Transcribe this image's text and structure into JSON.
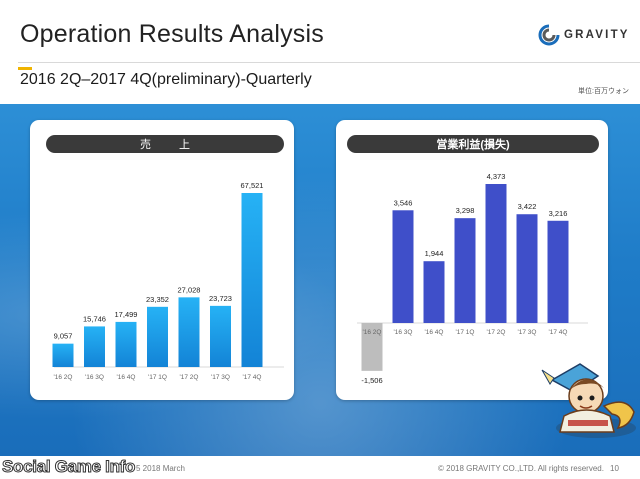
{
  "header": {
    "title": "Operation Results Analysis",
    "subtitle": "2016 2Q–2017 4Q(preliminary)-Quarterly",
    "unit_note": "単位:百万ウォン",
    "logo_text": "GRAVITY",
    "accent_color": "#f0b400"
  },
  "footer": {
    "watermark": "Social Game Info",
    "date": "5 2018 March",
    "copyright": "© 2018 GRAVITY CO.,LTD. All rights reserved.",
    "page": "10"
  },
  "colors": {
    "band": "#1f7cc8",
    "sales_bar": "#1c9be6",
    "op_bar_positive": "#3f4fc9",
    "op_bar_negative": "#bdbdbd"
  },
  "chart_data": [
    {
      "type": "bar",
      "title": "売上",
      "categories": [
        "'16 2Q",
        "'16 3Q",
        "'16 4Q",
        "'17 1Q",
        "'17 2Q",
        "'17 3Q",
        "'17 4Q"
      ],
      "values": [
        9057,
        15746,
        17499,
        23352,
        27028,
        23723,
        67521
      ],
      "labels": [
        "9,057",
        "15,746",
        "17,499",
        "23,352",
        "27,028",
        "23,723",
        "67,521"
      ]
    },
    {
      "type": "bar",
      "title": "営業利益(損失)",
      "categories": [
        "'16 2Q",
        "'16 3Q",
        "'16 4Q",
        "'17 1Q",
        "'17 2Q",
        "'17 3Q",
        "'17 4Q"
      ],
      "values": [
        -1506,
        3546,
        1944,
        3298,
        4373,
        3422,
        3216
      ],
      "labels": [
        "-1,506",
        "3,546",
        "1,944",
        "3,298",
        "4,373",
        "3,422",
        "3,216"
      ]
    }
  ]
}
